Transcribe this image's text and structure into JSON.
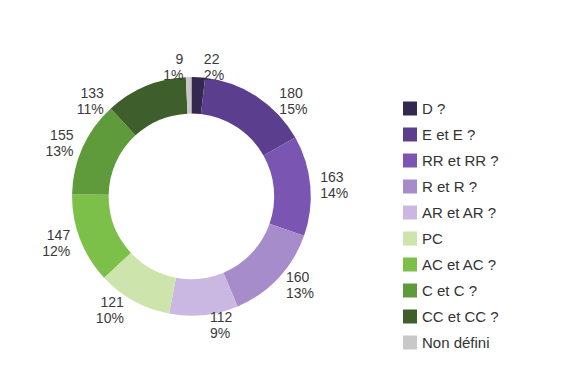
{
  "chart_data": {
    "type": "pie",
    "categories": [
      "D ?",
      "E et E ?",
      "RR et RR ?",
      "R et R ?",
      "AR et AR ?",
      "PC",
      "AC et AC ?",
      "C et C ?",
      "CC et CC ?",
      "Non défini"
    ],
    "values": [
      22,
      180,
      163,
      160,
      112,
      121,
      147,
      155,
      133,
      9
    ],
    "percents": [
      2,
      15,
      14,
      13,
      9,
      10,
      12,
      13,
      11,
      1
    ],
    "percent_labels": [
      "2%",
      "15%",
      "14%",
      "13%",
      "9%",
      "10%",
      "12%",
      "13%",
      "11%",
      "1%"
    ],
    "colors": [
      "#35284f",
      "#5b3f8e",
      "#7a55b2",
      "#a68ccb",
      "#cbb8e2",
      "#cde4ad",
      "#7cc04a",
      "#5f9a3b",
      "#3e5f2b",
      "#c8c8c8"
    ],
    "legend": "right",
    "data_labels": true
  }
}
